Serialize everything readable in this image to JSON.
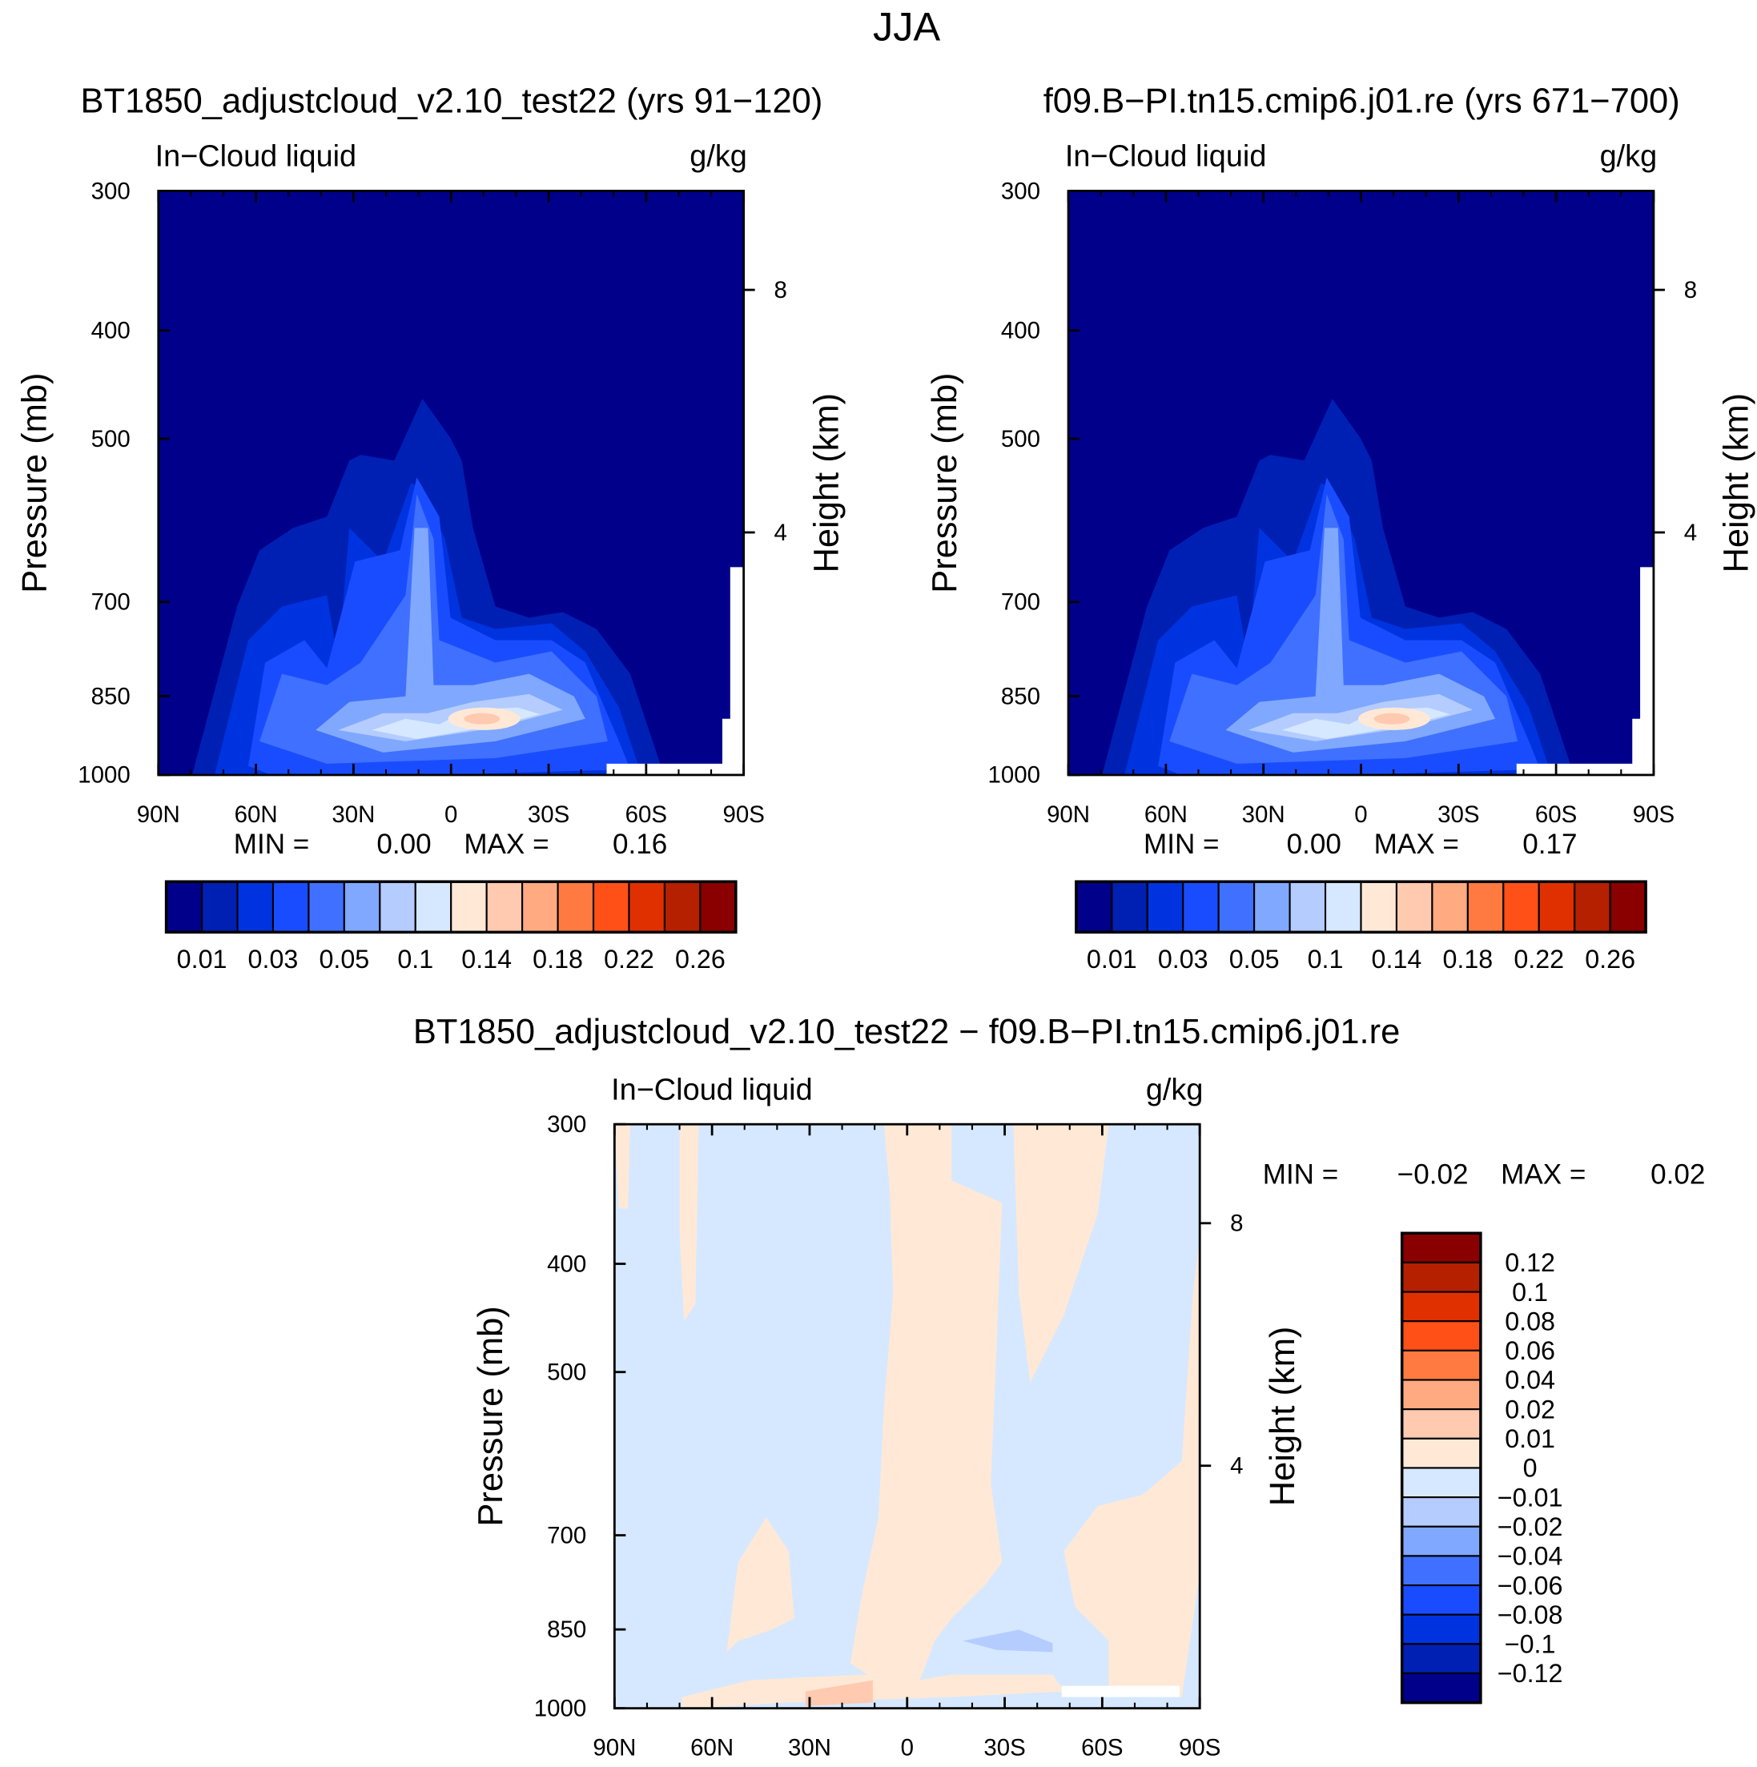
{
  "title": "JJA",
  "colors": {
    "abs_levels": [
      "#00008a",
      "#0020b4",
      "#0033e0",
      "#1a4cff",
      "#4070ff",
      "#80a8ff",
      "#b4ccff",
      "#d6e8ff",
      "#ffe9d6",
      "#ffcab0",
      "#ffaa80",
      "#ff7a40",
      "#ff5018",
      "#e03000",
      "#b42000",
      "#8a0000"
    ],
    "frame": "#000000"
  },
  "panels": [
    {
      "title": "BT1850_adjustcloud_v2.10_test22 (yrs 91−120)",
      "left_label": "In−Cloud liquid",
      "right_label": "g/kg",
      "min_label": "MIN =",
      "min_value": "0.00",
      "max_label": "MAX =",
      "max_value": "0.16"
    },
    {
      "title": "f09.B−PI.tn15.cmip6.j01.re (yrs 671−700)",
      "left_label": "In−Cloud liquid",
      "right_label": "g/kg",
      "min_label": "MIN =",
      "min_value": "0.00",
      "max_label": "MAX =",
      "max_value": "0.17"
    },
    {
      "title": "BT1850_adjustcloud_v2.10_test22 − f09.B−PI.tn15.cmip6.j01.re",
      "left_label": "In−Cloud liquid",
      "right_label": "g/kg",
      "min_label": "MIN =",
      "min_value": "−0.02",
      "max_label": "MAX =",
      "max_value": "0.02"
    }
  ],
  "axes": {
    "ylabel": "Pressure (mb)",
    "y2label": "Height (km)",
    "pressure_ticks": [
      "300",
      "400",
      "500",
      "700",
      "850",
      "1000"
    ],
    "height_ticks": [
      "8",
      "4"
    ],
    "lat_ticks": [
      "90N",
      "60N",
      "30N",
      "0",
      "30S",
      "60S",
      "90S"
    ]
  },
  "colorbars": {
    "abs_labels": [
      "0.01",
      "0.03",
      "0.05",
      "0.1",
      "0.14",
      "0.18",
      "0.22",
      "0.26"
    ],
    "diff_labels": [
      "0.12",
      "0.1",
      "0.08",
      "0.06",
      "0.04",
      "0.02",
      "0.01",
      "0",
      "−0.01",
      "−0.02",
      "−0.04",
      "−0.06",
      "−0.08",
      "−0.1",
      "−0.12"
    ]
  },
  "chart_data": [
    {
      "type": "heatmap",
      "subtype": "contour",
      "title": "BT1850_adjustcloud_v2.10_test22 (yrs 91−120)",
      "xlabel": "",
      "ylabel": "Pressure (mb)",
      "x_range": [
        "90N",
        "90S"
      ],
      "y_range": [
        300,
        1000
      ],
      "y_scale": "log",
      "min": 0.0,
      "max": 0.16,
      "levels": [
        0.005,
        0.01,
        0.02,
        0.03,
        0.04,
        0.05,
        0.07,
        0.1,
        0.12,
        0.14,
        0.16,
        0.18,
        0.2,
        0.22,
        0.24,
        0.26,
        0.28
      ],
      "feature": "Maximum near 850-900 mb, 10-15S; deep tower near 5-10N reaching 450 mb"
    },
    {
      "type": "heatmap",
      "subtype": "contour",
      "title": "f09.B−PI.tn15.cmip6.j01.re (yrs 671−700)",
      "xlabel": "",
      "ylabel": "Pressure (mb)",
      "x_range": [
        "90N",
        "90S"
      ],
      "y_range": [
        300,
        1000
      ],
      "y_scale": "log",
      "min": 0.0,
      "max": 0.17
    },
    {
      "type": "heatmap",
      "subtype": "contour",
      "title": "BT1850_adjustcloud_v2.10_test22 − f09.B−PI.tn15.cmip6.j01.re",
      "xlabel": "",
      "ylabel": "Pressure (mb)",
      "x_range": [
        "90N",
        "90S"
      ],
      "y_range": [
        300,
        1000
      ],
      "y_scale": "log",
      "min": -0.02,
      "max": 0.02
    }
  ]
}
